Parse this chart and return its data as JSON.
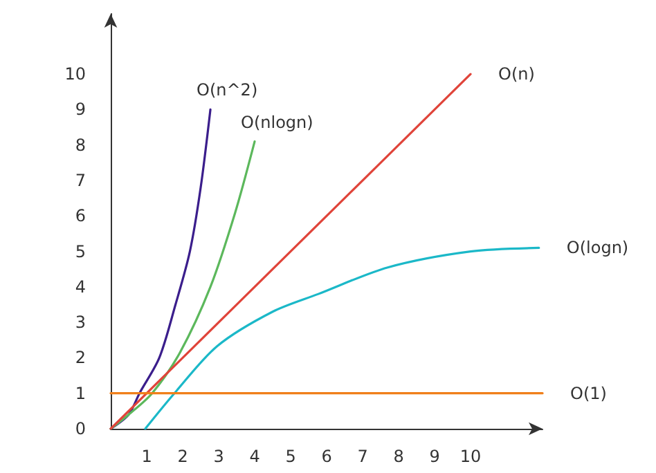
{
  "chart_data": {
    "type": "line",
    "marker": "none",
    "line_style": "solid",
    "xlim": [
      0,
      12
    ],
    "ylim": [
      0,
      11.7
    ],
    "xticks": [
      1,
      2,
      3,
      4,
      5,
      6,
      7,
      8,
      9,
      10
    ],
    "yticks": [
      0,
      1,
      2,
      3,
      4,
      5,
      6,
      7,
      8,
      9,
      10
    ],
    "series": [
      {
        "name": "O(n^2)",
        "color": "#3b1e8c",
        "x": [
          0,
          0.5,
          0.8,
          1.35,
          1.8,
          2.2,
          2.5,
          2.77
        ],
        "values": [
          0,
          0.4,
          1,
          2,
          3.5,
          5,
          6.8,
          9
        ]
      },
      {
        "name": "O(nlogn)",
        "color": "#5cb85c",
        "x": [
          0,
          0.5,
          1.15,
          1.92,
          2.77,
          3.46,
          4
        ],
        "values": [
          0,
          0.4,
          1,
          2.14,
          4,
          6.1,
          8.1
        ]
      },
      {
        "name": "O(n)",
        "color": "#e0443a",
        "x": [
          0,
          10
        ],
        "values": [
          0,
          10
        ]
      },
      {
        "name": "O(logn)",
        "color": "#1bb8c8",
        "x": [
          0.96,
          1.77,
          2.96,
          4.5,
          5.77,
          7.7,
          10,
          11.9
        ],
        "values": [
          0,
          1,
          2.33,
          3.3,
          3.8,
          4.55,
          5,
          5.1
        ]
      },
      {
        "name": "O(1)",
        "color": "#f07f1a",
        "x": [
          0,
          12
        ],
        "values": [
          1,
          1
        ]
      }
    ]
  }
}
